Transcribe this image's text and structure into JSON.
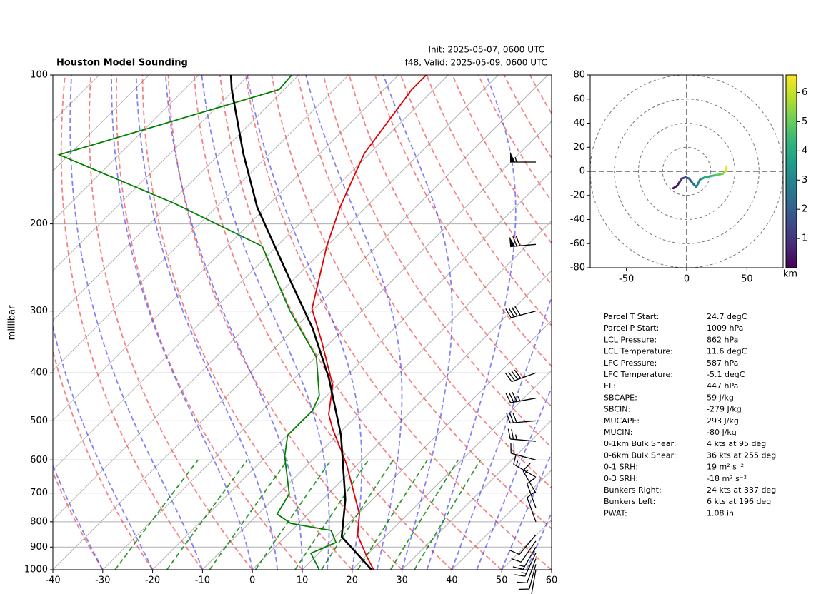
{
  "chart_data": [
    {
      "type": "skewt",
      "title": "Houston Model Sounding",
      "annotations": [
        "Init: 2025-05-07, 0600 UTC",
        "f48, Valid: 2025-05-09, 0600 UTC"
      ],
      "ylabel": "millibar",
      "log_y": true,
      "grid": true,
      "xlim": [
        -40,
        60
      ],
      "ylim": [
        1000,
        100
      ],
      "xticks": [
        -40,
        -30,
        -20,
        -10,
        0,
        10,
        20,
        30,
        40,
        50,
        60
      ],
      "yticks": [
        100,
        200,
        300,
        400,
        500,
        600,
        700,
        800,
        900,
        1000
      ],
      "series": [
        {
          "color": "#e00000",
          "y": [
            1000,
            936,
            852,
            772,
            612,
            518,
            485,
            424,
            347,
            297,
            222,
            185,
            144,
            107,
            100
          ],
          "values": [
            24.3,
            20.0,
            14.2,
            10.3,
            -2.3,
            -12.3,
            -15.9,
            -20.9,
            -31.7,
            -40.4,
            -50.0,
            -55.2,
            -61.1,
            -64.4,
            -64.4
          ]
        },
        {
          "color": "#008000",
          "y": [
            1000,
            926,
            881,
            833,
            806,
            772,
            703,
            591,
            535,
            477,
            445,
            372,
            299,
            222,
            182,
            145,
            107,
            100
          ],
          "values": [
            13.4,
            8.4,
            11.3,
            7.9,
            -1.6,
            -6.2,
            -7.8,
            -16.2,
            -19.9,
            -19.9,
            -21.5,
            -29.8,
            -44.6,
            -62.9,
            -89.0,
            -122.0,
            -91.0,
            -91.4
          ]
        },
        {
          "color": "#000000",
          "y": [
            1000,
            858,
            722,
            535,
            410,
            325,
            258,
            185,
            144,
            107,
            100
          ],
          "values": [
            23.9,
            11.3,
            4.6,
            -9.2,
            -23.1,
            -36.4,
            -51.0,
            -71.8,
            -85.4,
            -100.5,
            -103.6
          ]
        }
      ],
      "wind": {
        "pressure": [
          1000,
          975,
          950,
          925,
          900,
          875,
          850,
          800,
          750,
          700,
          650,
          600,
          550,
          500,
          450,
          400,
          300,
          220,
          150
        ],
        "direction": [
          190,
          195,
          200,
          205,
          210,
          215,
          220,
          340,
          340,
          330,
          300,
          285,
          275,
          265,
          260,
          250,
          255,
          265,
          270
        ],
        "speed": [
          10,
          12,
          12,
          14,
          14,
          12,
          10,
          8,
          10,
          15,
          15,
          20,
          25,
          30,
          35,
          40,
          40,
          70,
          55
        ]
      }
    },
    {
      "type": "hodograph",
      "xlim": [
        -80,
        80
      ],
      "ylim": [
        -80,
        80
      ],
      "xticks": [
        -50,
        0,
        50
      ],
      "yticks": [
        -80,
        -60,
        -40,
        -20,
        0,
        20,
        40,
        60,
        80
      ],
      "u": [
        -11,
        -8,
        -6,
        -4,
        -1,
        2,
        5,
        8,
        11,
        15,
        20,
        25,
        30,
        32,
        33,
        33
      ],
      "v": [
        -14,
        -12,
        -9,
        -6,
        -5,
        -6,
        -10,
        -13,
        -7,
        -5,
        -4,
        -3,
        -2,
        0,
        2,
        4
      ],
      "heights": [
        0.1,
        0.3,
        0.6,
        0.9,
        1.2,
        1.5,
        2.0,
        2.5,
        3.0,
        3.5,
        4.0,
        4.5,
        5.0,
        5.5,
        6.0,
        6.5
      ],
      "colorbar": {
        "label": "km",
        "lim": [
          0,
          6.6
        ],
        "ticks": [
          1,
          2,
          3,
          4,
          5,
          6
        ]
      }
    }
  ],
  "parameters": [
    {
      "label": "Parcel T Start:",
      "value": "24.7 degC"
    },
    {
      "label": "Parcel P Start:",
      "value": "1009 hPa"
    },
    {
      "label": "LCL Pressure:",
      "value": "862 hPa"
    },
    {
      "label": "LCL Temperature:",
      "value": "11.6 degC"
    },
    {
      "label": "LFC Pressure:",
      "value": "587 hPa"
    },
    {
      "label": "LFC Temperature:",
      "value": "-5.1 degC"
    },
    {
      "label": "EL:",
      "value": "447 hPa"
    },
    {
      "label": "SBCAPE:",
      "value": "59 J/kg"
    },
    {
      "label": "SBCIN:",
      "value": "-279 J/kg"
    },
    {
      "label": "MUCAPE:",
      "value": "293 J/kg"
    },
    {
      "label": "MUCIN:",
      "value": "-80 J/kg"
    },
    {
      "label": "0-1km Bulk Shear:",
      "value": "4 kts at 95 deg"
    },
    {
      "label": "0-6km Bulk Shear:",
      "value": "36 kts at 255 deg"
    },
    {
      "label": "0-1 SRH:",
      "value": "19 m² s⁻²"
    },
    {
      "label": "0-3 SRH:",
      "value": "-18 m² s⁻²"
    },
    {
      "label": "Bunkers Right:",
      "value": "24 kts at 337 deg"
    },
    {
      "label": "Bunkers Left:",
      "value": "6 kts at 196 deg"
    },
    {
      "label": "PWAT:",
      "value": "1.08 in"
    }
  ]
}
